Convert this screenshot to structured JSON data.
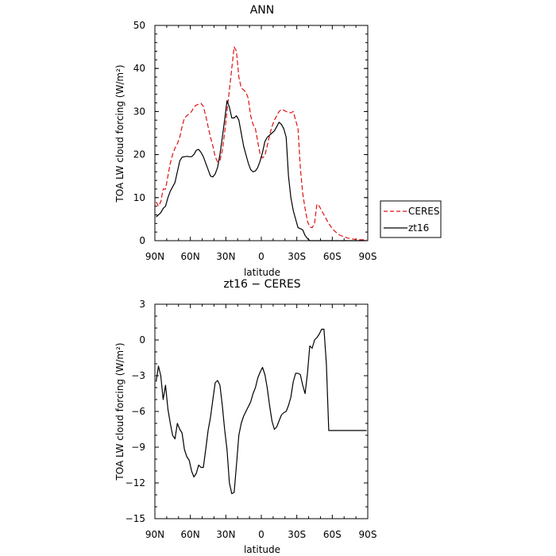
{
  "chart_data": [
    {
      "type": "line",
      "title": "ANN",
      "xlabel": "latitude",
      "ylabel": "TOA LW cloud forcing (W/m²)",
      "xlim": [
        90,
        -90
      ],
      "ylim": [
        0,
        50
      ],
      "x_ticks": [
        90,
        60,
        30,
        0,
        -30,
        -60,
        -90
      ],
      "x_tick_labels": [
        "90N",
        "60N",
        "30N",
        "0",
        "30S",
        "60S",
        "90S"
      ],
      "y_ticks": [
        0,
        10,
        20,
        30,
        40,
        50
      ],
      "y_tick_labels": [
        "0",
        "10",
        "20",
        "30",
        "40",
        "50"
      ],
      "legend": "right-outside",
      "series": [
        {
          "name": "CERES",
          "color": "#dd1111",
          "dash": "dashed",
          "x": [
            89,
            87,
            85,
            83,
            81,
            79,
            77,
            75,
            73,
            71,
            69,
            67,
            65,
            63,
            61,
            59,
            57,
            55,
            53,
            51,
            49,
            47,
            45,
            43,
            41,
            39,
            37,
            35,
            33,
            31,
            29,
            27,
            25,
            23,
            21,
            19,
            17,
            15,
            13,
            11,
            9,
            7,
            5,
            3,
            1,
            -1,
            -3,
            -5,
            -7,
            -9,
            -11,
            -13,
            -15,
            -17,
            -19,
            -21,
            -23,
            -25,
            -27,
            -29,
            -31,
            -33,
            -35,
            -37,
            -39,
            -41,
            -43,
            -45,
            -47,
            -49,
            -51,
            -53,
            -55,
            -57,
            -59,
            -61,
            -63,
            -65,
            -67,
            -69,
            -71,
            -73,
            -75,
            -77,
            -79,
            -81,
            -83,
            -85,
            -87,
            -89
          ],
          "values": [
            9,
            8,
            9,
            12,
            12,
            15,
            18,
            20,
            21.5,
            22.5,
            24,
            26.5,
            28.5,
            29,
            29.5,
            30,
            31,
            31.5,
            31.7,
            31.9,
            31.2,
            29,
            26.5,
            24,
            22,
            19.5,
            18.3,
            18.6,
            21,
            25,
            30,
            35,
            40,
            45,
            44,
            38,
            35.5,
            35,
            34.5,
            33,
            29,
            27,
            26,
            23,
            20,
            19.2,
            19.8,
            22,
            24.5,
            26.5,
            28,
            29,
            30,
            30.5,
            30.3,
            30,
            29.8,
            29.7,
            30,
            28,
            26,
            17,
            11,
            7.5,
            4.5,
            3.2,
            3,
            4,
            8.5,
            8,
            7,
            6,
            5,
            4,
            3.2,
            2.5,
            2,
            1.5,
            1.2,
            1,
            0.8,
            0.6,
            0.5,
            0.4,
            0.3,
            0.3,
            0.2,
            0.2,
            0.2,
            0.2
          ]
        },
        {
          "name": "zt16",
          "color": "#000000",
          "dash": "solid",
          "x": [
            89,
            87,
            85,
            83,
            81,
            79,
            77,
            75,
            73,
            71,
            69,
            67,
            65,
            63,
            61,
            59,
            57,
            55,
            53,
            51,
            49,
            47,
            45,
            43,
            41,
            39,
            37,
            35,
            33,
            31,
            29,
            27,
            25,
            23,
            21,
            19,
            17,
            15,
            13,
            11,
            9,
            7,
            5,
            3,
            1,
            -1,
            -3,
            -5,
            -7,
            -9,
            -11,
            -13,
            -15,
            -17,
            -19,
            -21,
            -23,
            -25,
            -27,
            -29,
            -31,
            -33,
            -35,
            -37,
            -39,
            -41,
            -43,
            -45,
            -47,
            -49,
            -51,
            -53,
            -55,
            -57,
            -59,
            -61,
            -63,
            -65,
            -67,
            -69,
            -71,
            -73,
            -75,
            -77,
            -79,
            -81,
            -83,
            -85,
            -87,
            -89
          ],
          "values": [
            5.5,
            6,
            6.5,
            7.5,
            8,
            10,
            11.5,
            12.5,
            13.5,
            16,
            18.5,
            19.4,
            19.5,
            19.6,
            19.5,
            19.5,
            20,
            21,
            21.2,
            20.5,
            19.5,
            18,
            16.5,
            15,
            14.8,
            15.5,
            17,
            20,
            24,
            28,
            32.5,
            31,
            28.5,
            28.5,
            29,
            28,
            25,
            22,
            20,
            18,
            16.5,
            16,
            16.2,
            17,
            18.5,
            20.5,
            23,
            24,
            24.5,
            25,
            25.5,
            26.5,
            27.5,
            27,
            26,
            24,
            15,
            10,
            7,
            5,
            3,
            2.8,
            2.5,
            1.2,
            0.5,
            0,
            0,
            0,
            0,
            0,
            0,
            0,
            0,
            0,
            0,
            0,
            0,
            0,
            0,
            0,
            0,
            0,
            0,
            0,
            0,
            0,
            0,
            0,
            0,
            0
          ]
        }
      ]
    },
    {
      "type": "line",
      "title": "zt16 − CERES",
      "xlabel": "latitude",
      "ylabel": "TOA LW cloud forcing (W/m²)",
      "xlim": [
        90,
        -90
      ],
      "ylim": [
        -15,
        3
      ],
      "x_ticks": [
        90,
        60,
        30,
        0,
        -30,
        -60,
        -90
      ],
      "x_tick_labels": [
        "90N",
        "60N",
        "30N",
        "0",
        "30S",
        "60S",
        "90S"
      ],
      "y_ticks": [
        -15,
        -12,
        -9,
        -6,
        -3,
        0,
        3
      ],
      "y_tick_labels": [
        "−15",
        "−12",
        "−9",
        "−6",
        "−3",
        "0",
        "3"
      ],
      "series": [
        {
          "color": "#000000",
          "dash": "solid",
          "x": [
            89,
            87,
            85,
            83,
            81,
            79,
            77,
            75,
            73,
            71,
            69,
            67,
            65,
            63,
            61,
            59,
            57,
            55,
            53,
            51,
            49,
            47,
            45,
            43,
            41,
            39,
            37,
            35,
            33,
            31,
            29,
            27,
            25,
            23,
            21,
            19,
            17,
            15,
            13,
            11,
            9,
            7,
            5,
            3,
            1,
            -1,
            -3,
            -5,
            -7,
            -9,
            -11,
            -13,
            -15,
            -17,
            -19,
            -21,
            -23,
            -25,
            -27,
            -29,
            -31,
            -33,
            -35,
            -37,
            -39,
            -41,
            -43,
            -45,
            -47,
            -49,
            -51,
            -53,
            -55,
            -57,
            -59,
            -61,
            -63,
            -65,
            -67,
            -69,
            -71,
            -73,
            -75,
            -77,
            -79,
            -81,
            -83,
            -85,
            -87,
            -89
          ],
          "values": [
            -3.5,
            -2.2,
            -3,
            -5,
            -3.8,
            -5.8,
            -7,
            -8,
            -8.3,
            -7,
            -7.5,
            -7.8,
            -9.2,
            -9.8,
            -10.1,
            -11,
            -11.5,
            -11.2,
            -10.5,
            -10.7,
            -10.7,
            -9.2,
            -7.6,
            -6.5,
            -5,
            -3.6,
            -3.4,
            -3.8,
            -5.5,
            -7.5,
            -9.2,
            -12,
            -12.9,
            -12.8,
            -10.5,
            -8,
            -7,
            -6.4,
            -6,
            -5.6,
            -5.2,
            -4.5,
            -4,
            -3.2,
            -2.7,
            -2.3,
            -2.9,
            -4,
            -5.5,
            -6.8,
            -7.5,
            -7.3,
            -6.8,
            -6.3,
            -6.1,
            -6,
            -5.5,
            -4.8,
            -3.5,
            -2.8,
            -2.8,
            -2.9,
            -3.8,
            -4.5,
            -2.8,
            -0.5,
            -0.7,
            0,
            0.2,
            0.5,
            0.9,
            0.9,
            -2,
            -7.6,
            -7.6,
            -7.6,
            -7.6,
            -7.6,
            -7.6,
            -7.6,
            -7.6,
            -7.6,
            -7.6,
            -7.6,
            -7.6,
            -7.6,
            -7.6,
            -7.6,
            -7.6,
            -7.6
          ]
        }
      ]
    }
  ]
}
